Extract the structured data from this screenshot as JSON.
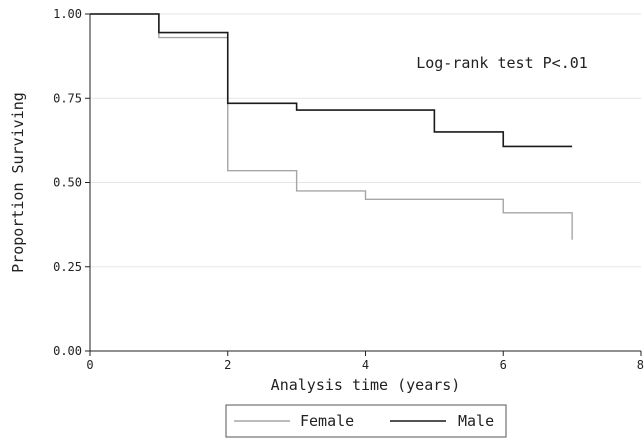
{
  "chart_data": {
    "type": "line",
    "subtype": "kaplan-meier step",
    "xlabel": "Analysis time (years)",
    "ylabel": "Proportion Surviving",
    "xlim": [
      0,
      8
    ],
    "ylim": [
      0,
      1
    ],
    "x_ticks": [
      0,
      2,
      4,
      6,
      8
    ],
    "y_ticks": [
      "0.00",
      "0.25",
      "0.50",
      "0.75",
      "1.00"
    ],
    "grid": "horizontal",
    "legend_position": "bottom",
    "annotation": "Log-rank test P<.01",
    "series": [
      {
        "name": "Female",
        "color": "#a6a6a6",
        "x": [
          0,
          1,
          2,
          3,
          4,
          6,
          7,
          7
        ],
        "y": [
          1.0,
          0.93,
          0.535,
          0.475,
          0.45,
          0.41,
          0.41,
          0.33
        ]
      },
      {
        "name": "Male",
        "color": "#1a1a1a",
        "x": [
          0,
          1,
          2,
          3,
          5,
          6,
          7
        ],
        "y": [
          1.0,
          0.945,
          0.735,
          0.715,
          0.65,
          0.607,
          0.607
        ]
      }
    ]
  }
}
